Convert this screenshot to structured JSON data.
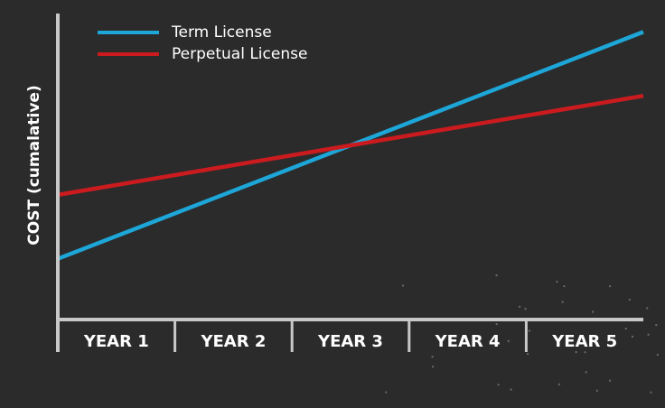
{
  "chart_data": {
    "type": "line",
    "title": "",
    "xlabel": "",
    "ylabel": "COST (cumalative)",
    "categories": [
      "YEAR 1",
      "YEAR 2",
      "YEAR 3",
      "YEAR 4",
      "YEAR 5"
    ],
    "x_range": [
      0,
      5
    ],
    "y_range": [
      0,
      100
    ],
    "y_ticks_shown": false,
    "grid": false,
    "legend_position": "top-left",
    "series": [
      {
        "name": "Term License",
        "color": "#1da6d8",
        "x": [
          0,
          5
        ],
        "y": [
          19,
          90
        ]
      },
      {
        "name": "Perpetual License",
        "color": "#cc1b1f",
        "x": [
          0,
          5
        ],
        "y": [
          39,
          70
        ]
      }
    ]
  },
  "colors": {
    "background": "#2b2b2b",
    "axis": "#c8c8c8",
    "text": "#ffffff"
  }
}
